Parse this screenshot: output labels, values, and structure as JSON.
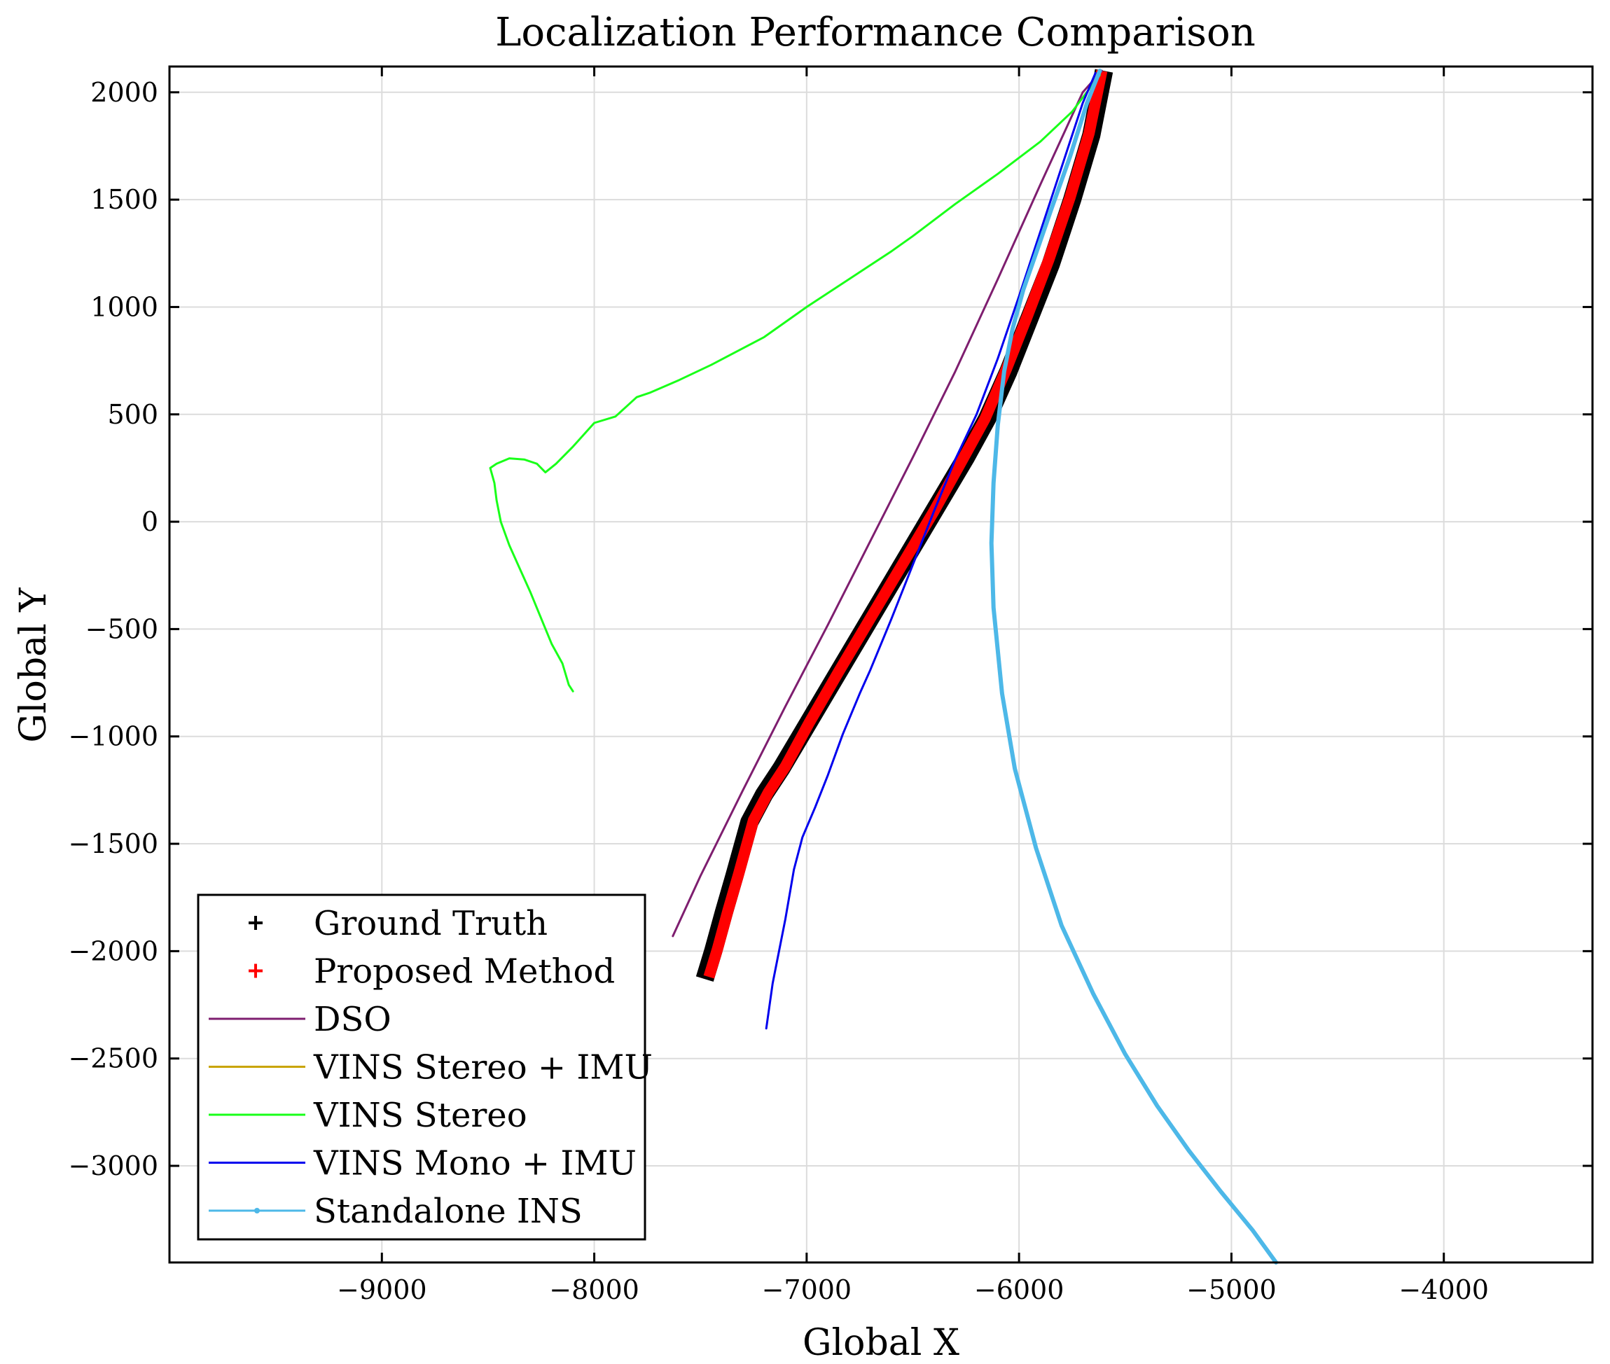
{
  "chart_data": {
    "type": "line",
    "title": "Localization Performance Comparison",
    "xlabel": "Global X",
    "ylabel": "Global Y",
    "xlim": [
      -10000,
      -3300
    ],
    "ylim": [
      -3450,
      2120
    ],
    "xticks": [
      -9000,
      -8000,
      -7000,
      -6000,
      -5000,
      -4000
    ],
    "xtick_labels": [
      "−9000",
      "−8000",
      "−7000",
      "−6000",
      "−5000",
      "−4000"
    ],
    "yticks": [
      2000,
      1500,
      1000,
      500,
      0,
      -500,
      -1000,
      -1500,
      -2000,
      -2500,
      -3000
    ],
    "ytick_labels": [
      "2000",
      "1500",
      "1000",
      "500",
      "0",
      "−500",
      "−1000",
      "−1500",
      "−2000",
      "−2500",
      "−3000"
    ],
    "grid": true,
    "legend_position": "bottom-left",
    "series": [
      {
        "name": "Ground Truth",
        "style": "marker-plus",
        "color": "#000000",
        "x": [
          -7480,
          -7440,
          -7390,
          -7340,
          -7270,
          -7200,
          -7120,
          -7000,
          -6850,
          -6700,
          -6550,
          -6400,
          -6250,
          -6150,
          -6050,
          -5950,
          -5850,
          -5750,
          -5660,
          -5600
        ],
        "y": [
          -2130,
          -2000,
          -1820,
          -1650,
          -1400,
          -1270,
          -1150,
          -950,
          -700,
          -450,
          -200,
          50,
          300,
          480,
          700,
          950,
          1200,
          1500,
          1800,
          2100
        ]
      },
      {
        "name": "Proposed Method",
        "style": "marker-plus",
        "color": "#ff0000",
        "x": [
          -7460,
          -7420,
          -7370,
          -7320,
          -7250,
          -7180,
          -7100,
          -6990,
          -6850,
          -6700,
          -6550,
          -6400,
          -6260,
          -6160,
          -6060,
          -5960,
          -5860,
          -5760,
          -5670,
          -5610
        ],
        "y": [
          -2120,
          -1990,
          -1810,
          -1640,
          -1390,
          -1260,
          -1140,
          -940,
          -700,
          -450,
          -200,
          50,
          300,
          480,
          710,
          960,
          1220,
          1510,
          1810,
          2100
        ]
      },
      {
        "name": "DSO",
        "style": "line",
        "color": "#7e1e6f",
        "x": [
          -7630,
          -7500,
          -7300,
          -7100,
          -6900,
          -6700,
          -6500,
          -6300,
          -6100,
          -5900,
          -5700,
          -5610
        ],
        "y": [
          -1930,
          -1650,
          -1250,
          -860,
          -480,
          -90,
          300,
          700,
          1130,
          1570,
          2000,
          2100
        ]
      },
      {
        "name": "VINS Stereo + IMU",
        "style": "line",
        "color": "#c9a400",
        "x": [
          -5620,
          -5625
        ],
        "y": [
          2090,
          2085
        ]
      },
      {
        "name": "VINS Stereo",
        "style": "line",
        "color": "#19ff19",
        "x": [
          -8100,
          -8120,
          -8150,
          -8200,
          -8250,
          -8300,
          -8350,
          -8400,
          -8440,
          -8460,
          -8470,
          -8490,
          -8460,
          -8400,
          -8330,
          -8270,
          -8230,
          -8180,
          -8100,
          -8000,
          -7900,
          -7800,
          -7740,
          -7600,
          -7450,
          -7200,
          -7000,
          -6800,
          -6600,
          -6500,
          -6300,
          -6100,
          -5900,
          -5750,
          -5620
        ],
        "y": [
          -790,
          -760,
          -660,
          -570,
          -450,
          -330,
          -220,
          -110,
          0,
          100,
          180,
          250,
          270,
          295,
          290,
          270,
          230,
          270,
          350,
          460,
          490,
          580,
          600,
          660,
          730,
          860,
          1000,
          1130,
          1260,
          1330,
          1480,
          1620,
          1770,
          1910,
          2080
        ]
      },
      {
        "name": "VINS Mono + IMU",
        "style": "line",
        "color": "#0000ee",
        "x": [
          -7190,
          -7160,
          -7100,
          -7060,
          -7020,
          -6960,
          -6900,
          -6830,
          -6750,
          -6700,
          -6600,
          -6500,
          -6400,
          -6300,
          -6200,
          -6100,
          -6000,
          -5900,
          -5800,
          -5700,
          -5640
        ],
        "y": [
          -2360,
          -2150,
          -1850,
          -1620,
          -1470,
          -1330,
          -1180,
          -990,
          -800,
          -690,
          -450,
          -200,
          50,
          290,
          500,
          760,
          1050,
          1350,
          1650,
          1950,
          2090
        ]
      },
      {
        "name": "Standalone INS",
        "style": "line-dot",
        "color": "#4db8e8",
        "x": [
          -4790,
          -4900,
          -5050,
          -5200,
          -5350,
          -5500,
          -5650,
          -5800,
          -5920,
          -6020,
          -6080,
          -6120,
          -6130,
          -6120,
          -6100,
          -6070,
          -6030,
          -5980,
          -5920,
          -5850,
          -5760,
          -5680,
          -5620
        ],
        "y": [
          -3450,
          -3300,
          -3120,
          -2930,
          -2720,
          -2480,
          -2200,
          -1880,
          -1520,
          -1150,
          -800,
          -400,
          -100,
          180,
          450,
          700,
          900,
          1080,
          1250,
          1450,
          1700,
          1950,
          2100
        ]
      }
    ]
  }
}
